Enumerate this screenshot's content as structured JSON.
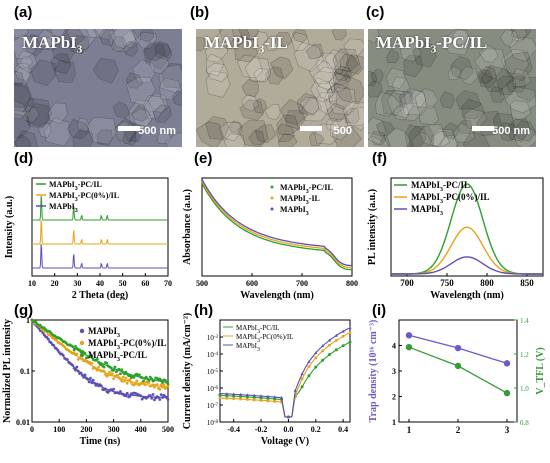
{
  "figure": {
    "panel_labels": [
      "(a)",
      "(b)",
      "(c)",
      "(d)",
      "(e)",
      "(f)",
      "(g)",
      "(h)",
      "(i)"
    ],
    "sem": [
      {
        "label": "MAPbI",
        "sub": "3",
        "suffix": "",
        "scale": "500 nm",
        "color": "#7c7f93"
      },
      {
        "label": "MAPbI",
        "sub": "3",
        "suffix": "-IL",
        "scale": "500",
        "color": "#b1ab99"
      },
      {
        "label": "MAPbI",
        "sub": "3",
        "suffix": "-PC/IL",
        "scale": "500 nm",
        "color": "#868d80"
      }
    ]
  },
  "chart_data": [
    {
      "panel": "d",
      "type": "line",
      "xlabel": "2 Theta (deg)",
      "ylabel": "Intensity (a.u.)",
      "xlim": [
        10,
        70
      ],
      "xticks": [
        10,
        20,
        30,
        40,
        50,
        60,
        70
      ],
      "series": [
        {
          "name": "MAPbI3-PC/IL",
          "color": "#2ca02c",
          "offset": 2,
          "peaks": [
            14.1,
            28.4,
            31.9,
            40.6,
            43.2
          ]
        },
        {
          "name": "MAPbI3-PC(0%)/IL",
          "color": "#e8a317",
          "offset": 1,
          "peaks": [
            14.1,
            28.4,
            31.9,
            40.6,
            43.2
          ]
        },
        {
          "name": "MAPbI3",
          "color": "#5b4fb8",
          "offset": 0,
          "peaks": [
            14.1,
            28.4,
            31.9,
            40.6,
            43.2
          ]
        }
      ]
    },
    {
      "panel": "e",
      "type": "line",
      "xlabel": "Wavelength (nm)",
      "ylabel": "Absorbance (a.u.)",
      "xlim": [
        500,
        800
      ],
      "xticks": [
        500,
        600,
        700,
        800
      ],
      "series": [
        {
          "name": "MAPbI3-PC/IL",
          "color": "#2ca02c"
        },
        {
          "name": "MAPbI3-IL",
          "color": "#e8a317"
        },
        {
          "name": "MAPbI3",
          "color": "#5b4fb8"
        }
      ]
    },
    {
      "panel": "f",
      "type": "line",
      "xlabel": "Wavelength (nm)",
      "ylabel": "PL intensity (a.u.)",
      "xlim": [
        680,
        870
      ],
      "xticks": [
        700,
        750,
        800,
        850
      ],
      "series": [
        {
          "name": "MAPbI3-PC/IL",
          "color": "#2ca02c",
          "peak_nm": 775,
          "amplitude": 1.0
        },
        {
          "name": "MAPbI3-PC(0%)/IL",
          "color": "#e8a317",
          "peak_nm": 775,
          "amplitude": 0.52
        },
        {
          "name": "MAPbI3",
          "color": "#5b4fb8",
          "peak_nm": 775,
          "amplitude": 0.19
        }
      ]
    },
    {
      "panel": "g",
      "type": "scatter",
      "xlabel": "Time (ns)",
      "ylabel": "Normalized PL intensity",
      "xlim": [
        0,
        500
      ],
      "ylim": [
        0.01,
        1
      ],
      "yscale": "log",
      "xticks": [
        0,
        100,
        200,
        300,
        400,
        500
      ],
      "yticks": [
        0.01,
        0.1,
        1
      ],
      "series": [
        {
          "name": "MAPbI3",
          "color": "#5b4fb8",
          "plateau": 0.03,
          "tau": 65
        },
        {
          "name": "MAPbI3-PC(0%)/IL",
          "color": "#e8a317",
          "plateau": 0.045,
          "tau": 90
        },
        {
          "name": "MAPbI3-PC/IL",
          "color": "#2ca02c",
          "plateau": 0.05,
          "tau": 110
        }
      ]
    },
    {
      "panel": "h",
      "type": "line",
      "xlabel": "Voltage (V)",
      "ylabel": "Current density (mA/cm⁻²)",
      "xlim": [
        -0.5,
        0.45
      ],
      "ylim": [
        1e-08,
        0.01
      ],
      "yscale": "log",
      "xticks": [
        -0.4,
        -0.2,
        0.0,
        0.2,
        0.4
      ],
      "series": [
        {
          "name": "MAPbI3-PC/IL",
          "color": "#2ca02c"
        },
        {
          "name": "MAPbI3-PC(0%)/IL",
          "color": "#e8a317"
        },
        {
          "name": "MAPbI3",
          "color": "#5b4fb8"
        }
      ]
    },
    {
      "panel": "i",
      "type": "line",
      "xlabel": "",
      "ylabel": "Trap density (10¹⁶ cm⁻³)",
      "ylabel_right": "V_TFL (V)",
      "categories": [
        1,
        2,
        3
      ],
      "series": [
        {
          "name": "Trap density",
          "color": "#6a5acd",
          "values": [
            4.4,
            3.9,
            3.3
          ],
          "ylim": [
            1,
            5
          ],
          "yticks": [
            1,
            2,
            3,
            4
          ]
        },
        {
          "name": "VTFL",
          "color": "#3a9a3a",
          "values": [
            1.24,
            1.13,
            0.97
          ],
          "ylim": [
            0.8,
            1.4
          ],
          "yticks": [
            0.8,
            1.0,
            1.2,
            1.4
          ]
        }
      ]
    }
  ]
}
